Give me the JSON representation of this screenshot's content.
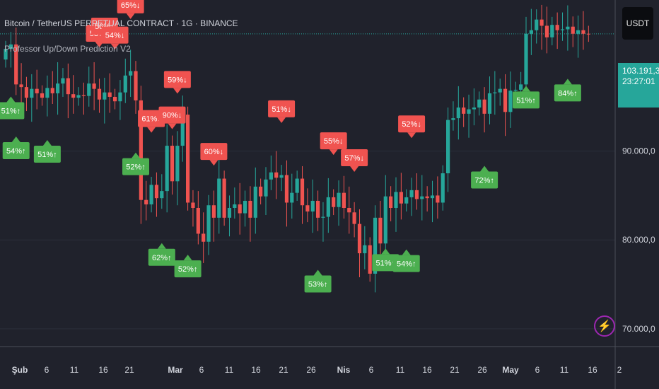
{
  "header": {
    "title": "Bitcoin / TetherUS PERPETUAL CONTRACT · 1G · BINANCE",
    "indicator": "Professor Up/Down Prediction V2"
  },
  "unit_label": "USDT",
  "last_price": "103.191,3",
  "countdown": "23:27:01",
  "colors": {
    "background": "#20222c",
    "up": "#26a69a",
    "down": "#ef5350",
    "up_label": "#4caf50",
    "down_label": "#f05350",
    "grid": "#2a2e39"
  },
  "icons": {
    "alert": "lightning-icon"
  },
  "chart_data": {
    "type": "candlestick",
    "y_ticks": [
      "70.000,0",
      "80.000,0",
      "90.000,0"
    ],
    "ylim": [
      68000,
      107000
    ],
    "x_ticks": [
      "Şub",
      "6",
      "11",
      "16",
      "21",
      "Mar",
      "6",
      "11",
      "16",
      "21",
      "26",
      "Nis",
      "6",
      "11",
      "16",
      "21",
      "26",
      "May",
      "6",
      "11",
      "16",
      "2"
    ],
    "close": [
      101500,
      102000,
      97500,
      97200,
      96000,
      97000,
      96500,
      96000,
      97100,
      96500,
      97600,
      98200,
      96400,
      96000,
      96300,
      96200,
      97600,
      97000,
      95800,
      96600,
      96100,
      95600,
      96600,
      98500,
      99000,
      95700,
      84500,
      84000,
      86200,
      84700,
      85500,
      90600,
      86600,
      90600,
      94100,
      84200,
      83600,
      80700,
      79800,
      83900,
      82500,
      86900,
      82500,
      83600,
      84000,
      83000,
      84400,
      82500,
      86000,
      84900,
      86800,
      87600,
      87000,
      87300,
      84200,
      85300,
      86900,
      83900,
      83200,
      84400,
      82500,
      82600,
      84800,
      83700,
      85300,
      83600,
      83100,
      81800,
      78500,
      79400,
      76200,
      82500,
      79600,
      84900,
      83600,
      85400,
      84100,
      84800,
      85600,
      84600,
      84900,
      84700,
      85000,
      84200,
      87500,
      93500,
      93700,
      94900,
      94200,
      94700,
      94900,
      95800,
      94200,
      96500,
      96600,
      97000,
      94400,
      96800,
      96900,
      97500,
      103200,
      103600,
      104800,
      104100,
      102800,
      104200,
      103600,
      103700,
      104000,
      103200,
      103600,
      103200,
      103191
    ],
    "labels": [
      {
        "bar": 1,
        "text": "51%↑",
        "dir": "up"
      },
      {
        "bar": 2,
        "text": "54%↑",
        "dir": "up"
      },
      {
        "bar": 8,
        "text": "51%↑",
        "dir": "up"
      },
      {
        "bar": 18,
        "text": "58%↓",
        "dir": "down"
      },
      {
        "bar": 19,
        "text": "56%↓",
        "dir": "down"
      },
      {
        "bar": 21,
        "text": "54%↓",
        "dir": "down"
      },
      {
        "bar": 24,
        "text": "65%↓",
        "dir": "down"
      },
      {
        "bar": 25,
        "text": "52%↑",
        "dir": "up"
      },
      {
        "bar": 28,
        "text": "61%↓",
        "dir": "down"
      },
      {
        "bar": 30,
        "text": "62%↑",
        "dir": "up"
      },
      {
        "bar": 32,
        "text": "90%↓",
        "dir": "down"
      },
      {
        "bar": 33,
        "text": "59%↓",
        "dir": "down"
      },
      {
        "bar": 35,
        "text": "52%↑",
        "dir": "up"
      },
      {
        "bar": 40,
        "text": "60%↓",
        "dir": "down"
      },
      {
        "bar": 53,
        "text": "51%↓",
        "dir": "down"
      },
      {
        "bar": 60,
        "text": "53%↑",
        "dir": "up"
      },
      {
        "bar": 63,
        "text": "55%↓",
        "dir": "down"
      },
      {
        "bar": 67,
        "text": "57%↓",
        "dir": "down"
      },
      {
        "bar": 73,
        "text": "51%↑",
        "dir": "up"
      },
      {
        "bar": 77,
        "text": "54%↑",
        "dir": "up"
      },
      {
        "bar": 78,
        "text": "52%↓",
        "dir": "down"
      },
      {
        "bar": 92,
        "text": "72%↑",
        "dir": "up"
      },
      {
        "bar": 100,
        "text": "51%↑",
        "dir": "up"
      },
      {
        "bar": 108,
        "text": "84%↑",
        "dir": "up"
      }
    ]
  }
}
